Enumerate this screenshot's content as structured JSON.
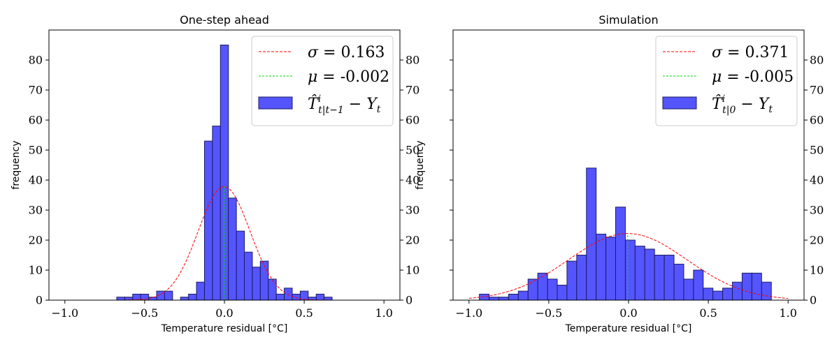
{
  "colors": {
    "bar_fill": "#5555ff",
    "bar_edge": "#1a1a66",
    "normal_curve": "#ff0000",
    "mean_line": "#00dd00"
  },
  "chart_data": [
    {
      "type": "bar",
      "title": "One-step ahead",
      "xlabel": "Temperature residual [°C]",
      "ylabel": "frequency",
      "xlim": [
        -1.1,
        1.1
      ],
      "ylim": [
        0,
        90
      ],
      "xticks": [
        "−1.0",
        "−0.5",
        "0.0",
        "0.5",
        "1.0"
      ],
      "xtick_values": [
        -1.0,
        -0.5,
        0.0,
        0.5,
        1.0
      ],
      "yticks": [
        "0",
        "10",
        "20",
        "30",
        "40",
        "50",
        "60",
        "70",
        "80"
      ],
      "ytick_values": [
        0,
        10,
        20,
        30,
        40,
        50,
        60,
        70,
        80
      ],
      "secondary_y_ticks": true,
      "legend_position": "top-right",
      "legend": [
        "σ = 0.163",
        "μ = -0.002",
        "T̂ⁱ_{t|t−1} − Y_t"
      ],
      "sigma": 0.163,
      "mu": -0.002,
      "normal_peak": 37.8,
      "normal_range": [
        -1.0,
        1.0
      ],
      "bin_width": 0.05,
      "bin_left_edges": [
        -0.675,
        -0.625,
        -0.575,
        -0.525,
        -0.475,
        -0.425,
        -0.375,
        -0.275,
        -0.225,
        -0.175,
        -0.125,
        -0.075,
        -0.025,
        0.025,
        0.075,
        0.125,
        0.175,
        0.225,
        0.275,
        0.325,
        0.375,
        0.425,
        0.475,
        0.525,
        0.575,
        0.625
      ],
      "values": [
        1,
        1,
        2,
        2,
        1,
        3,
        3,
        1,
        2,
        6,
        53,
        58,
        85,
        34,
        23,
        16,
        11,
        13,
        7,
        2,
        4,
        2,
        3,
        1,
        2,
        1
      ]
    },
    {
      "type": "bar",
      "title": "Simulation",
      "xlabel": "Temperature residual [°C]",
      "ylabel": "frequency",
      "xlim": [
        -1.1,
        1.1
      ],
      "ylim": [
        0,
        90
      ],
      "xticks": [
        "−1.0",
        "−0.5",
        "0.0",
        "0.5",
        "1.0"
      ],
      "xtick_values": [
        -1.0,
        -0.5,
        0.0,
        0.5,
        1.0
      ],
      "yticks": [
        "0",
        "10",
        "20",
        "30",
        "40",
        "50",
        "60",
        "70",
        "80"
      ],
      "ytick_values": [
        0,
        10,
        20,
        30,
        40,
        50,
        60,
        70,
        80
      ],
      "secondary_y_ticks": true,
      "legend_position": "top-right",
      "legend": [
        "σ = 0.371",
        "μ = -0.005",
        "T̂ⁱ_{t|0} − Y_t"
      ],
      "sigma": 0.371,
      "mu": -0.005,
      "normal_peak": 22.2,
      "normal_range": [
        -1.0,
        1.0
      ],
      "bin_width": 0.061,
      "bin_left_edges": [
        -0.935,
        -0.874,
        -0.813,
        -0.752,
        -0.691,
        -0.63,
        -0.569,
        -0.508,
        -0.447,
        -0.386,
        -0.325,
        -0.264,
        -0.203,
        -0.142,
        -0.081,
        -0.02,
        0.041,
        0.102,
        0.163,
        0.224,
        0.285,
        0.346,
        0.407,
        0.468,
        0.529,
        0.59,
        0.651,
        0.712,
        0.773,
        0.834
      ],
      "values": [
        2,
        1,
        1,
        2,
        3,
        7,
        9,
        7,
        5,
        13,
        15,
        44,
        22,
        21,
        31,
        20,
        18,
        17,
        15,
        15,
        12,
        7,
        10,
        4,
        3,
        4,
        6,
        9,
        9,
        6
      ]
    }
  ]
}
